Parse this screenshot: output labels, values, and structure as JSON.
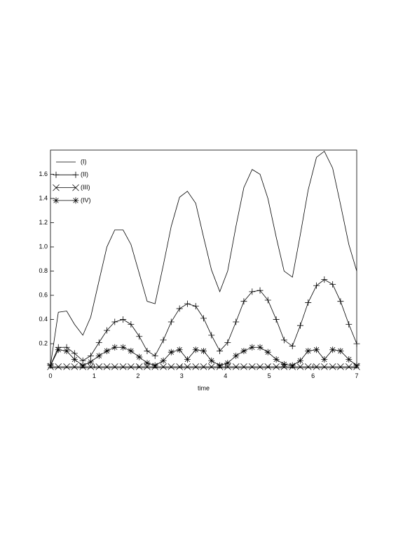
{
  "chart_data": {
    "type": "line",
    "xlabel": "time",
    "x": [
      0,
      0.18,
      0.37,
      0.55,
      0.74,
      0.92,
      1.11,
      1.29,
      1.47,
      1.66,
      1.84,
      2.03,
      2.21,
      2.39,
      2.58,
      2.76,
      2.95,
      3.13,
      3.32,
      3.5,
      3.68,
      3.87,
      4.05,
      4.24,
      4.42,
      4.61,
      4.79,
      4.97,
      5.16,
      5.34,
      5.53,
      5.71,
      5.89,
      6.08,
      6.26,
      6.45,
      6.63,
      6.82,
      7
    ],
    "series": [
      {
        "name": "(I)",
        "color": "#000000",
        "marker": "none",
        "values": [
          0.02,
          0.46,
          0.47,
          0.36,
          0.27,
          0.42,
          0.72,
          1.0,
          1.14,
          1.14,
          1.02,
          0.78,
          0.55,
          0.53,
          0.85,
          1.17,
          1.41,
          1.46,
          1.36,
          1.08,
          0.81,
          0.63,
          0.8,
          1.17,
          1.49,
          1.64,
          1.6,
          1.4,
          1.08,
          0.8,
          0.75,
          1.1,
          1.47,
          1.74,
          1.79,
          1.65,
          1.35,
          1.02,
          0.8
        ]
      },
      {
        "name": "(II)",
        "color": "#000000",
        "marker": "plus",
        "values": [
          0.02,
          0.17,
          0.17,
          0.12,
          0.06,
          0.1,
          0.21,
          0.31,
          0.38,
          0.4,
          0.36,
          0.26,
          0.14,
          0.1,
          0.23,
          0.38,
          0.49,
          0.53,
          0.51,
          0.41,
          0.27,
          0.14,
          0.21,
          0.38,
          0.55,
          0.63,
          0.64,
          0.56,
          0.4,
          0.23,
          0.18,
          0.35,
          0.54,
          0.68,
          0.73,
          0.69,
          0.55,
          0.36,
          0.2
        ]
      },
      {
        "name": "(III)",
        "color": "#000000",
        "marker": "x",
        "values": [
          0.01,
          0.01,
          0.01,
          0.01,
          0.01,
          0.01,
          0.01,
          0.01,
          0.01,
          0.01,
          0.01,
          0.01,
          0.01,
          0.01,
          0.01,
          0.01,
          0.01,
          0.01,
          0.01,
          0.01,
          0.01,
          0.01,
          0.01,
          0.01,
          0.01,
          0.01,
          0.01,
          0.01,
          0.01,
          0.01,
          0.01,
          0.01,
          0.01,
          0.01,
          0.01,
          0.01,
          0.01,
          0.01,
          0.01
        ]
      },
      {
        "name": "(IV)",
        "color": "#000000",
        "marker": "star",
        "values": [
          0.02,
          0.15,
          0.14,
          0.07,
          0.02,
          0.05,
          0.1,
          0.14,
          0.17,
          0.17,
          0.14,
          0.09,
          0.04,
          0.02,
          0.06,
          0.13,
          0.15,
          0.07,
          0.15,
          0.14,
          0.06,
          0.02,
          0.04,
          0.1,
          0.14,
          0.17,
          0.17,
          0.13,
          0.07,
          0.03,
          0.02,
          0.06,
          0.14,
          0.15,
          0.07,
          0.15,
          0.14,
          0.07,
          0.02
        ]
      }
    ],
    "xlim": [
      0,
      7
    ],
    "xticks": [
      0,
      1,
      2,
      3,
      4,
      5,
      6,
      7
    ],
    "ylim": [
      0,
      1.8
    ],
    "yticks": [
      0.2,
      0.4,
      0.6,
      0.8,
      {
        "value": 1,
        "label": "1.0"
      },
      1.2,
      1.4,
      1.6
    ],
    "grid": false,
    "legend": "upper left"
  }
}
